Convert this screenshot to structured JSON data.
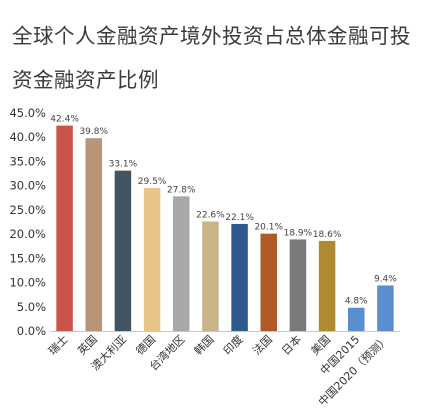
{
  "chart_data": {
    "type": "bar",
    "title": "全球个人金融资产境外投资占总体金融可投资金融资产比例",
    "xlabel": "",
    "ylabel": "",
    "categories": [
      "瑞士",
      "英国",
      "澳大利亚",
      "德国",
      "台湾地区",
      "韩国",
      "印度",
      "法国",
      "日本",
      "美国",
      "中国2015",
      "中国2020（预测）"
    ],
    "values": [
      42.4,
      39.8,
      33.1,
      29.5,
      27.8,
      22.6,
      22.1,
      20.1,
      18.9,
      18.6,
      4.8,
      9.4
    ],
    "value_labels": [
      "42.4%",
      "39.8%",
      "33.1%",
      "29.5%",
      "27.8%",
      "22.6%",
      "22.1%",
      "20.1%",
      "18.9%",
      "18.6%",
      "4.8%",
      "9.4%"
    ],
    "bar_colors": [
      "#c9544a",
      "#b89478",
      "#415564",
      "#e8c489",
      "#a8a8a8",
      "#c9b488",
      "#2f5a8e",
      "#b05a2a",
      "#7a7a7a",
      "#b08a30",
      "#5a8ed0",
      "#5a8ed0"
    ],
    "ylim": [
      0,
      45
    ],
    "yticks": [
      0,
      5,
      10,
      15,
      20,
      25,
      30,
      35,
      40,
      45
    ],
    "ytick_labels": [
      "0.0%",
      "5.0%",
      "10.0%",
      "15.0%",
      "20.0%",
      "25.0%",
      "30.0%",
      "35.0%",
      "40.0%",
      "45.0%"
    ],
    "grid": false,
    "legend": "none"
  }
}
